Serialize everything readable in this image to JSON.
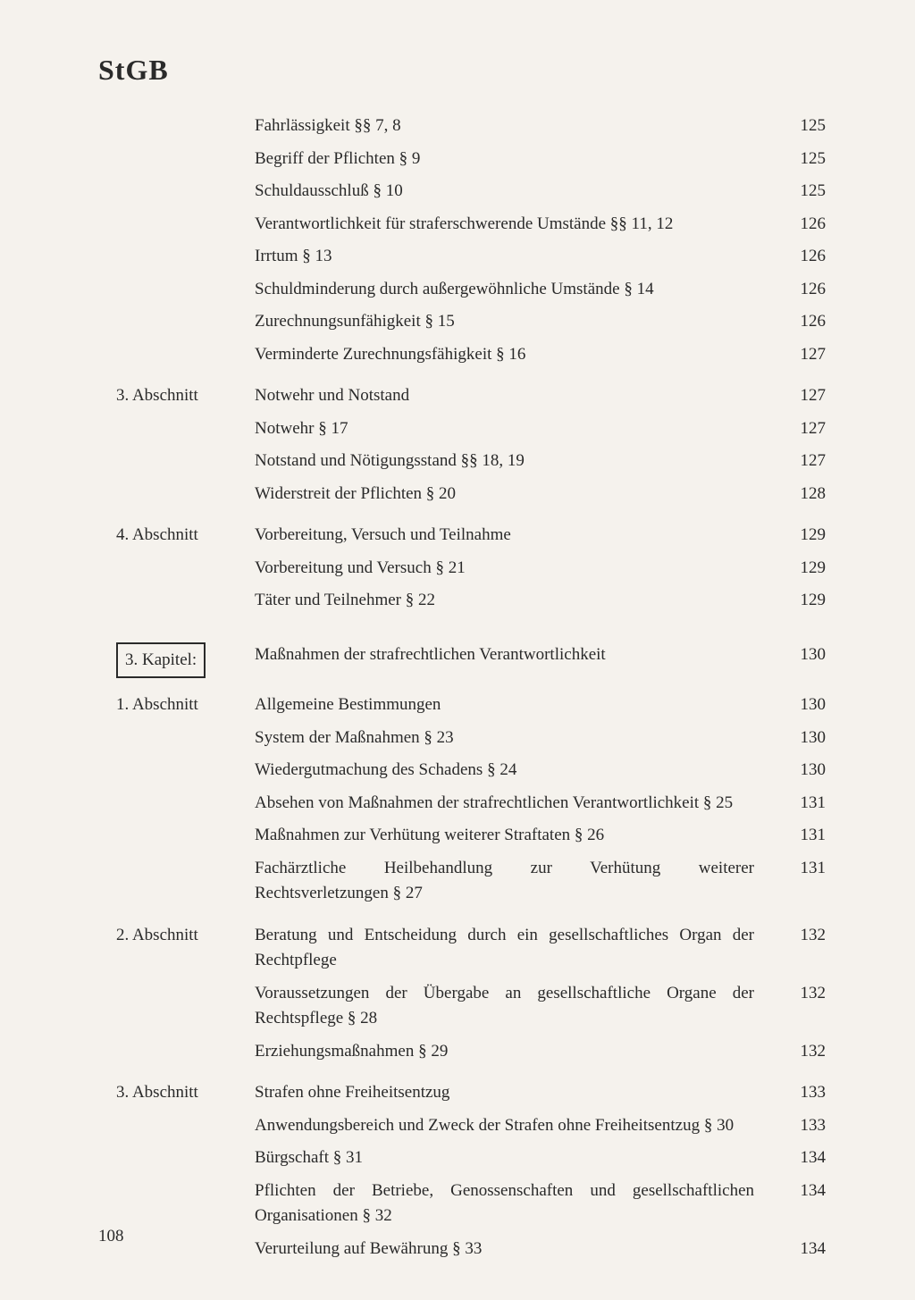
{
  "header": {
    "title": "StGB"
  },
  "pageNumber": "108",
  "entries": [
    {
      "section": "",
      "text": "Fahrlässigkeit §§ 7, 8",
      "page": "125",
      "class": ""
    },
    {
      "section": "",
      "text": "Begriff der Pflichten § 9",
      "page": "125",
      "class": ""
    },
    {
      "section": "",
      "text": "Schuldausschluß § 10",
      "page": "125",
      "class": ""
    },
    {
      "section": "",
      "text": "Verantwortlichkeit für straferschwerende Umstände §§ 11, 12",
      "page": "126",
      "class": ""
    },
    {
      "section": "",
      "text": "Irrtum § 13",
      "page": "126",
      "class": ""
    },
    {
      "section": "",
      "text": "Schuldminderung durch außergewöhnliche Umstände § 14",
      "page": "126",
      "class": ""
    },
    {
      "section": "",
      "text": "Zurechnungsunfähigkeit § 15",
      "page": "126",
      "class": ""
    },
    {
      "section": "",
      "text": "Verminderte Zurechnungsfähigkeit § 16",
      "page": "127",
      "class": ""
    },
    {
      "section": "3. Abschnitt",
      "text": "Notwehr und Notstand",
      "page": "127",
      "class": "section-start"
    },
    {
      "section": "",
      "text": "Notwehr § 17",
      "page": "127",
      "class": ""
    },
    {
      "section": "",
      "text": "Notstand und Nötigungsstand §§ 18, 19",
      "page": "127",
      "class": ""
    },
    {
      "section": "",
      "text": "Widerstreit der Pflichten § 20",
      "page": "128",
      "class": ""
    },
    {
      "section": "4. Abschnitt",
      "text": "Vorbereitung, Versuch und Teilnahme",
      "page": "129",
      "class": "section-start"
    },
    {
      "section": "",
      "text": "Vorbereitung und Versuch § 21",
      "page": "129",
      "class": ""
    },
    {
      "section": "",
      "text": "Täter und Teilnehmer § 22",
      "page": "129",
      "class": ""
    },
    {
      "section": "3. Kapitel:",
      "text": "Maßnahmen der strafrechtlichen Verantwortlichkeit",
      "page": "130",
      "class": "chapter-row",
      "isChapter": true
    },
    {
      "section": "1. Abschnitt",
      "text": "Allgemeine Bestimmungen",
      "page": "130",
      "class": ""
    },
    {
      "section": "",
      "text": "System der Maßnahmen § 23",
      "page": "130",
      "class": ""
    },
    {
      "section": "",
      "text": "Wiedergutmachung des Schadens § 24",
      "page": "130",
      "class": ""
    },
    {
      "section": "",
      "text": "Absehen von Maßnahmen der strafrechtlichen Verantwortlichkeit § 25",
      "page": "131",
      "class": ""
    },
    {
      "section": "",
      "text": "Maßnahmen zur Verhütung weiterer Straftaten § 26",
      "page": "131",
      "class": ""
    },
    {
      "section": "",
      "text": "Fachärztliche Heilbehandlung zur Verhütung weiterer Rechtsverletzungen § 27",
      "page": "131",
      "class": ""
    },
    {
      "section": "2. Abschnitt",
      "text": "Beratung und Entscheidung durch ein gesellschaftliches Organ der Rechtpflege",
      "page": "132",
      "class": "section-start"
    },
    {
      "section": "",
      "text": "Voraussetzungen der Übergabe an gesellschaftliche Organe der Rechtspflege § 28",
      "page": "132",
      "class": ""
    },
    {
      "section": "",
      "text": "Erziehungsmaßnahmen § 29",
      "page": "132",
      "class": ""
    },
    {
      "section": "3. Abschnitt",
      "text": "Strafen ohne Freiheitsentzug",
      "page": "133",
      "class": "section-start"
    },
    {
      "section": "",
      "text": "Anwendungsbereich und Zweck der Strafen ohne Freiheitsentzug § 30",
      "page": "133",
      "class": ""
    },
    {
      "section": "",
      "text": "Bürgschaft § 31",
      "page": "134",
      "class": ""
    },
    {
      "section": "",
      "text": "Pflichten der Betriebe, Genossenschaften und gesellschaftlichen Organisationen § 32",
      "page": "134",
      "class": ""
    },
    {
      "section": "",
      "text": "Verurteilung auf Bewährung § 33",
      "page": "134",
      "class": ""
    }
  ]
}
